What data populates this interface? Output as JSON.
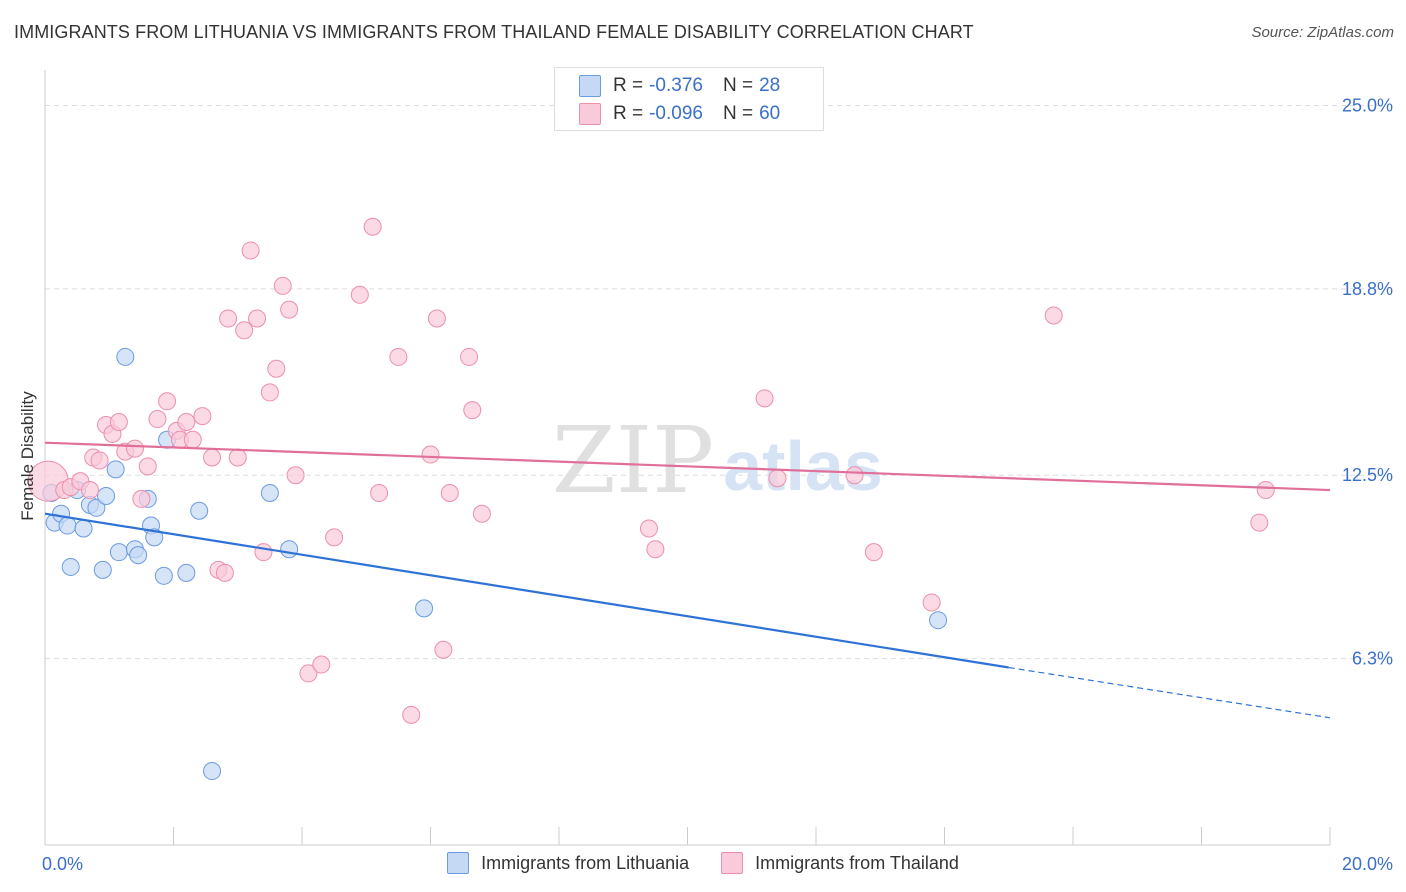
{
  "title": "IMMIGRANTS FROM LITHUANIA VS IMMIGRANTS FROM THAILAND FEMALE DISABILITY CORRELATION CHART",
  "source": "Source: ZipAtlas.com",
  "watermark": {
    "zip": "ZIP",
    "atlas": "atlas"
  },
  "colors": {
    "lithuania_fill": "#c5d9f5",
    "lithuania_stroke": "#6b9be0",
    "lithuania_line": "#2f72d6",
    "thailand_fill": "#f9cbda",
    "thailand_stroke": "#ec8fac",
    "thailand_line": "#e0709a",
    "tick_label": "#3a6fc8",
    "grid": "#dddddd"
  },
  "legend": {
    "rows": [
      {
        "r_label": "R =",
        "r_value": "-0.376",
        "n_label": "N =",
        "n_value": "28"
      },
      {
        "r_label": "R =",
        "r_value": "-0.096",
        "n_label": "N =",
        "n_value": "60"
      }
    ]
  },
  "chart_data": {
    "type": "scatter",
    "ylabel": "Female Disability",
    "xlabel": "",
    "xlim": [
      0,
      20
    ],
    "ylim": [
      0,
      26.2
    ],
    "x_tick_labels": [
      "0.0%",
      "20.0%"
    ],
    "y_ticks": [
      6.3,
      12.5,
      18.8,
      25.0
    ],
    "y_tick_labels": [
      "6.3%",
      "12.5%",
      "18.8%",
      "25.0%"
    ],
    "grid": "horizontal dashed",
    "legend_position": "bottom",
    "series": [
      {
        "name": "Immigrants from Lithuania",
        "points": [
          [
            0.1,
            11.9
          ],
          [
            0.15,
            10.9
          ],
          [
            0.25,
            11.2
          ],
          [
            0.35,
            10.8
          ],
          [
            0.4,
            9.4
          ],
          [
            0.5,
            12.0
          ],
          [
            0.6,
            10.7
          ],
          [
            0.7,
            11.5
          ],
          [
            0.8,
            11.4
          ],
          [
            0.9,
            9.3
          ],
          [
            0.95,
            11.8
          ],
          [
            1.1,
            12.7
          ],
          [
            1.15,
            9.9
          ],
          [
            1.25,
            16.5
          ],
          [
            1.4,
            10.0
          ],
          [
            1.45,
            9.8
          ],
          [
            1.6,
            11.7
          ],
          [
            1.65,
            10.8
          ],
          [
            1.7,
            10.4
          ],
          [
            1.85,
            9.1
          ],
          [
            1.9,
            13.7
          ],
          [
            2.2,
            9.2
          ],
          [
            2.4,
            11.3
          ],
          [
            2.6,
            2.5
          ],
          [
            3.5,
            11.9
          ],
          [
            3.8,
            10.0
          ],
          [
            5.9,
            8.0
          ],
          [
            13.9,
            7.6
          ]
        ],
        "trend": {
          "x0": 0,
          "y0": 11.2,
          "x1": 15.0,
          "y1": 6.0,
          "dashed_to_x": 20,
          "dashed_to_y": 4.3
        }
      },
      {
        "name": "Immigrants from Thailand",
        "points": [
          [
            0.05,
            12.3
          ],
          [
            0.3,
            12.0
          ],
          [
            0.4,
            12.1
          ],
          [
            0.55,
            12.3
          ],
          [
            0.7,
            12.0
          ],
          [
            0.75,
            13.1
          ],
          [
            0.85,
            13.0
          ],
          [
            0.95,
            14.2
          ],
          [
            1.05,
            13.9
          ],
          [
            1.15,
            14.3
          ],
          [
            1.25,
            13.3
          ],
          [
            1.4,
            13.4
          ],
          [
            1.5,
            11.7
          ],
          [
            1.6,
            12.8
          ],
          [
            1.75,
            14.4
          ],
          [
            1.9,
            15.0
          ],
          [
            2.05,
            14.0
          ],
          [
            2.1,
            13.7
          ],
          [
            2.2,
            14.3
          ],
          [
            2.3,
            13.7
          ],
          [
            2.45,
            14.5
          ],
          [
            2.6,
            13.1
          ],
          [
            2.7,
            9.3
          ],
          [
            2.8,
            9.2
          ],
          [
            2.85,
            17.8
          ],
          [
            3.0,
            13.1
          ],
          [
            3.1,
            17.4
          ],
          [
            3.2,
            20.1
          ],
          [
            3.3,
            17.8
          ],
          [
            3.4,
            9.9
          ],
          [
            3.5,
            15.3
          ],
          [
            3.6,
            16.1
          ],
          [
            3.7,
            18.9
          ],
          [
            3.8,
            18.1
          ],
          [
            3.9,
            12.5
          ],
          [
            4.1,
            5.8
          ],
          [
            4.3,
            6.1
          ],
          [
            4.5,
            10.4
          ],
          [
            4.9,
            18.6
          ],
          [
            5.1,
            20.9
          ],
          [
            5.2,
            11.9
          ],
          [
            5.5,
            16.5
          ],
          [
            5.7,
            4.4
          ],
          [
            6.0,
            13.2
          ],
          [
            6.1,
            17.8
          ],
          [
            6.2,
            6.6
          ],
          [
            6.3,
            11.9
          ],
          [
            6.6,
            16.5
          ],
          [
            6.65,
            14.7
          ],
          [
            6.8,
            11.2
          ],
          [
            9.4,
            10.7
          ],
          [
            9.5,
            10.0
          ],
          [
            11.2,
            15.1
          ],
          [
            11.4,
            12.4
          ],
          [
            12.6,
            12.5
          ],
          [
            12.9,
            9.9
          ],
          [
            13.8,
            8.2
          ],
          [
            15.7,
            17.9
          ],
          [
            18.9,
            10.9
          ],
          [
            19.0,
            12.0
          ]
        ],
        "trend": {
          "x0": 0,
          "y0": 13.6,
          "x1": 20,
          "y1": 12.0
        }
      }
    ]
  }
}
